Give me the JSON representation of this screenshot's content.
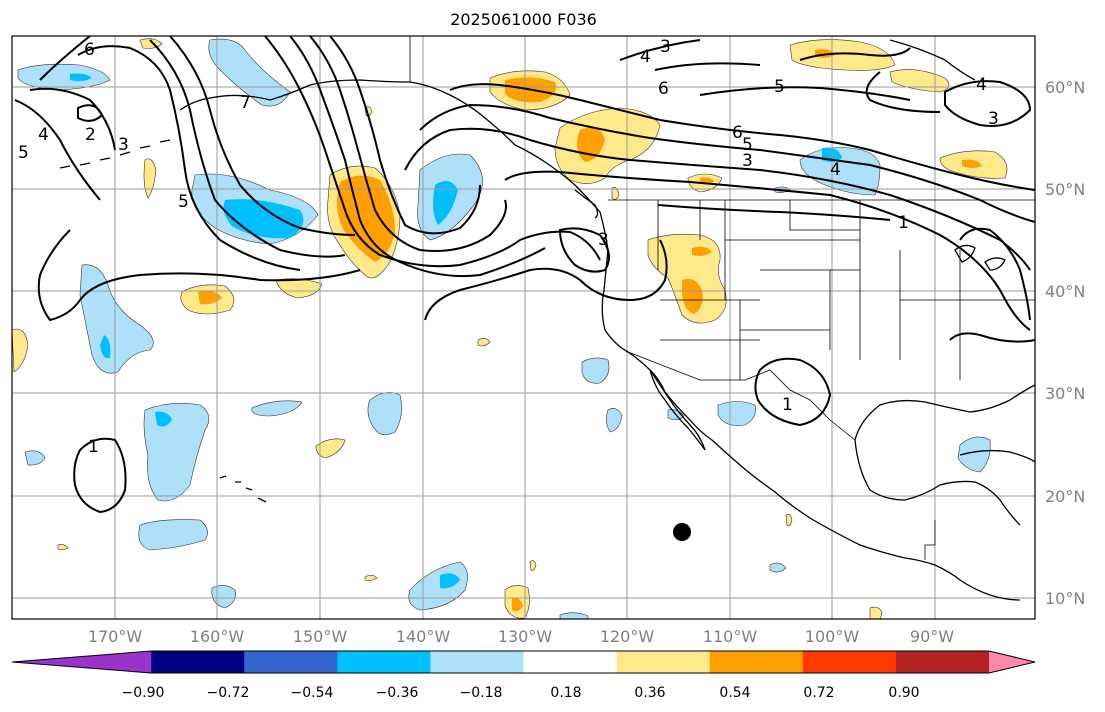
{
  "title": "2025061000 F036",
  "lon_labels": [
    "170°W",
    "160°W",
    "150°W",
    "140°W",
    "130°W",
    "120°W",
    "110°W",
    "100°W",
    "90°W"
  ],
  "lat_labels": [
    "60°N",
    "50°N",
    "40°N",
    "30°N",
    "20°N",
    "10°N"
  ],
  "colorbar": {
    "tick_labels": [
      "−0.90",
      "−0.72",
      "−0.54",
      "−0.36",
      "−0.18",
      "0.18",
      "0.36",
      "0.54",
      "0.72",
      "0.90"
    ],
    "colors": [
      "#9933cc",
      "#000080",
      "#3366cc",
      "#00bfff",
      "#aee0fa",
      "#ffffff",
      "#ffe98a",
      "#ffa000",
      "#ff3a00",
      "#b22222",
      "#ff88aa"
    ]
  },
  "contour_labels": [
    "6",
    "4",
    "2",
    "5",
    "3",
    "7",
    "5",
    "6",
    "4",
    "3",
    "6",
    "5",
    "3",
    "4",
    "3",
    "5",
    "4",
    "1",
    "1",
    "3",
    "1"
  ],
  "colors": {
    "contour": "#000000",
    "coast": "#000000",
    "grid": "#9a9a9a",
    "marker": "#000000"
  }
}
